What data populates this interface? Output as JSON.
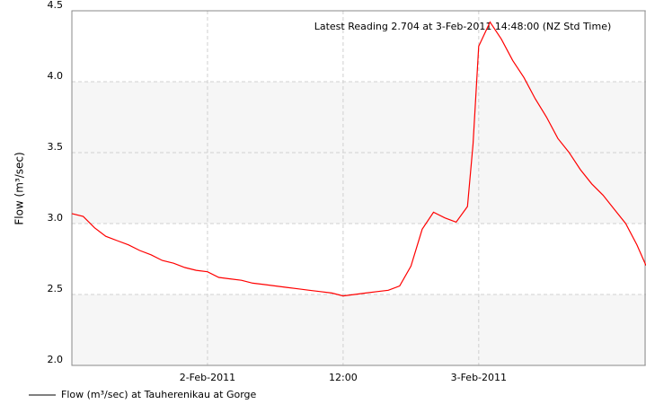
{
  "chart_data": {
    "type": "line",
    "annotation": "Latest Reading 2.704 at  3-Feb-2011 14:48:00 (NZ Std Time)",
    "y_label": "Flow (m³/sec)",
    "x": [
      "2011-02-01 12:00",
      "2011-02-01 13:00",
      "2011-02-01 14:00",
      "2011-02-01 15:00",
      "2011-02-01 16:00",
      "2011-02-01 17:00",
      "2011-02-01 18:00",
      "2011-02-01 19:00",
      "2011-02-01 20:00",
      "2011-02-01 21:00",
      "2011-02-01 22:00",
      "2011-02-01 23:00",
      "2011-02-02 00:00",
      "2011-02-02 01:00",
      "2011-02-02 02:00",
      "2011-02-02 03:00",
      "2011-02-02 04:00",
      "2011-02-02 05:00",
      "2011-02-02 06:00",
      "2011-02-02 07:00",
      "2011-02-02 08:00",
      "2011-02-02 09:00",
      "2011-02-02 10:00",
      "2011-02-02 11:00",
      "2011-02-02 12:00",
      "2011-02-02 13:00",
      "2011-02-02 14:00",
      "2011-02-02 15:00",
      "2011-02-02 16:00",
      "2011-02-02 17:00",
      "2011-02-02 18:00",
      "2011-02-02 19:00",
      "2011-02-02 20:00",
      "2011-02-02 21:00",
      "2011-02-02 22:00",
      "2011-02-02 23:00",
      "2011-02-02 23:30",
      "2011-02-03 00:00",
      "2011-02-03 01:00",
      "2011-02-03 02:00",
      "2011-02-03 03:00",
      "2011-02-03 04:00",
      "2011-02-03 05:00",
      "2011-02-03 06:00",
      "2011-02-03 07:00",
      "2011-02-03 08:00",
      "2011-02-03 09:00",
      "2011-02-03 10:00",
      "2011-02-03 11:00",
      "2011-02-03 12:00",
      "2011-02-03 13:00",
      "2011-02-03 14:00",
      "2011-02-03 14:48"
    ],
    "series": [
      {
        "name": "Flow (m³/sec) at Tauherenikau at Gorge",
        "color": "#ff0000",
        "values": [
          3.07,
          3.05,
          2.97,
          2.91,
          2.88,
          2.85,
          2.81,
          2.78,
          2.74,
          2.72,
          2.69,
          2.67,
          2.66,
          2.62,
          2.61,
          2.6,
          2.58,
          2.57,
          2.56,
          2.55,
          2.54,
          2.53,
          2.52,
          2.51,
          2.49,
          2.5,
          2.51,
          2.52,
          2.53,
          2.56,
          2.7,
          2.96,
          3.08,
          3.04,
          3.01,
          3.12,
          3.56,
          4.25,
          4.42,
          4.3,
          4.15,
          4.03,
          3.88,
          3.75,
          3.6,
          3.5,
          3.38,
          3.28,
          3.2,
          3.1,
          3.0,
          2.85,
          2.704
        ]
      }
    ],
    "xlim": [
      "2011-02-01 12:00",
      "2011-02-03 14:48"
    ],
    "xticks": [
      {
        "value": "2011-02-02 00:00",
        "label": "2-Feb-2011"
      },
      {
        "value": "2011-02-02 12:00",
        "label": "12:00"
      },
      {
        "value": "2011-02-03 00:00",
        "label": "3-Feb-2011"
      }
    ],
    "ylim": [
      2,
      4.5
    ],
    "yticks": [
      {
        "value": 2,
        "label": "2.0"
      },
      2.5,
      {
        "value": 3,
        "label": "3.0"
      },
      3.5,
      {
        "value": 4,
        "label": "4.0"
      },
      4.5
    ],
    "grid": true
  }
}
